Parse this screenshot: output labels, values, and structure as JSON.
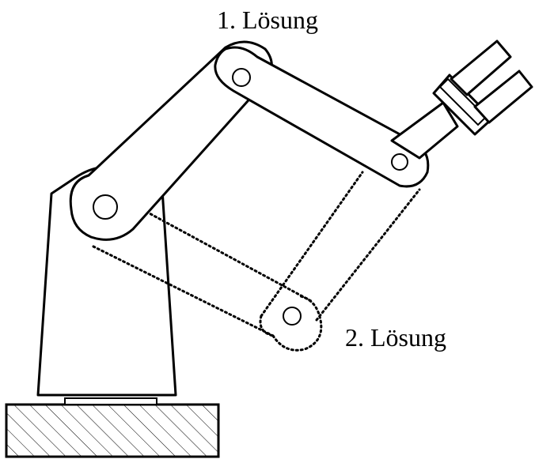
{
  "labels": {
    "solution_1": "1. Lösung",
    "solution_2": "2. Lösung"
  },
  "colors": {
    "stroke": "#000000",
    "fill": "#ffffff"
  }
}
